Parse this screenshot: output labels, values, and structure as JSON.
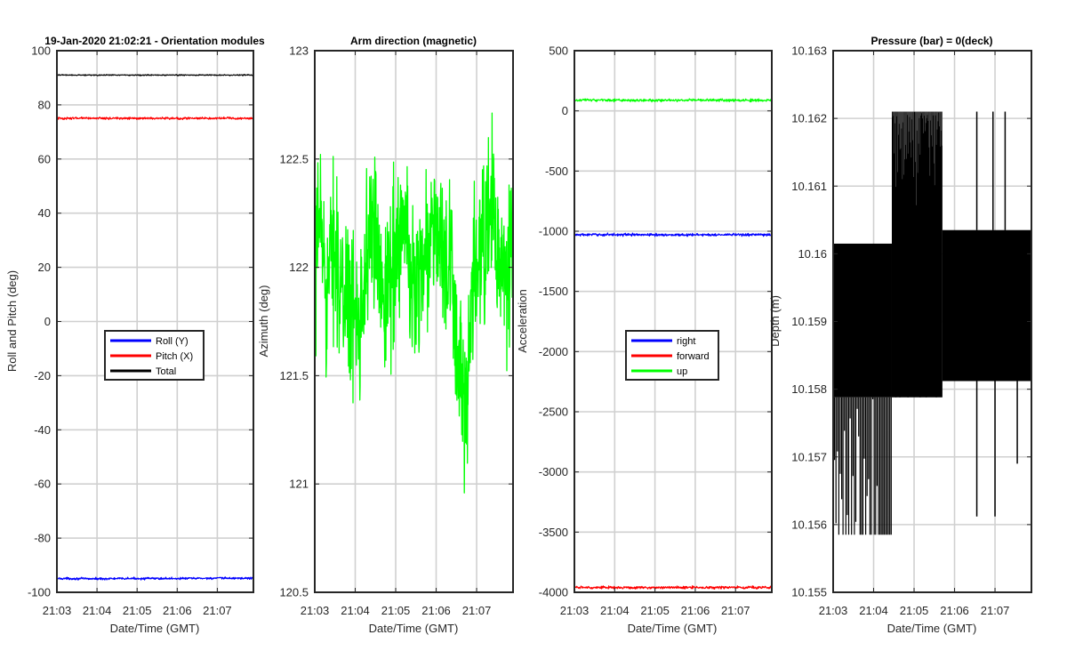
{
  "figure": {
    "background": "#ffffff",
    "grid_color": "#d0d0d0",
    "axis_color": "#262626"
  },
  "chart_data": [
    {
      "type": "line",
      "title": "19-Jan-2020 21:02:21 - Orientation modules",
      "xlabel": "Date/Time (GMT)",
      "ylabel": "Roll and Pitch (deg)",
      "xlim": [
        0,
        4.9
      ],
      "ylim": [
        -100,
        100
      ],
      "xticks": [
        0,
        1,
        2,
        3,
        4
      ],
      "xtick_labels": [
        "21:03",
        "21:04",
        "21:05",
        "21:06",
        "21:07"
      ],
      "yticks": [
        -100,
        -80,
        -60,
        -40,
        -20,
        0,
        20,
        40,
        60,
        80,
        100
      ],
      "ytick_labels": [
        "-100",
        "-80",
        "-60",
        "-40",
        "-20",
        "0",
        "20",
        "40",
        "60",
        "80",
        "100"
      ],
      "grid": true,
      "legend_position": "center",
      "series": [
        {
          "name": "Roll (Y)",
          "color": "#0000ff",
          "x": [
            0,
            1,
            2,
            3,
            4,
            4.9
          ],
          "values": [
            -94.9,
            -95.0,
            -94.9,
            -94.9,
            -94.8,
            -94.8
          ],
          "noise": 0.3
        },
        {
          "name": "Pitch (X)",
          "color": "#ff0000",
          "x": [
            0,
            1,
            2,
            3,
            4,
            4.9
          ],
          "values": [
            75.0,
            75.1,
            75.0,
            75.0,
            75.1,
            75.0
          ],
          "noise": 0.3
        },
        {
          "name": "Total",
          "color": "#000000",
          "x": [
            0,
            1,
            2,
            3,
            4,
            4.9
          ],
          "values": [
            91.0,
            91.0,
            91.0,
            91.0,
            91.0,
            91.0
          ],
          "noise": 0.15
        }
      ]
    },
    {
      "type": "line",
      "title": "Arm direction (magnetic)",
      "xlabel": "Date/Time (GMT)",
      "ylabel": "Azimuth (deg)",
      "xlim": [
        0,
        4.9
      ],
      "ylim": [
        120.5,
        123
      ],
      "xticks": [
        0,
        1,
        2,
        3,
        4
      ],
      "xtick_labels": [
        "21:03",
        "21:04",
        "21:05",
        "21:06",
        "21:07"
      ],
      "yticks": [
        120.5,
        121,
        121.5,
        122,
        122.5,
        123
      ],
      "ytick_labels": [
        "120.5",
        "121",
        "121.5",
        "122",
        "122.5",
        "123"
      ],
      "grid": true,
      "series": [
        {
          "name": "azimuth",
          "color": "#00ff00",
          "x": [
            0,
            0.1,
            0.2,
            0.3,
            0.4,
            0.5,
            0.6,
            0.7,
            0.8,
            0.9,
            1.0,
            1.2,
            1.4,
            1.6,
            1.8,
            2.0,
            2.2,
            2.4,
            2.6,
            2.8,
            3.0,
            3.2,
            3.4,
            3.6,
            3.7,
            3.8,
            3.9,
            4.0,
            4.2,
            4.4,
            4.6,
            4.8,
            4.9
          ],
          "values": [
            121.7,
            122.3,
            122.1,
            121.9,
            122.0,
            122.2,
            121.9,
            121.8,
            122.0,
            121.7,
            121.8,
            121.9,
            122.2,
            122.0,
            121.9,
            122.1,
            122.2,
            121.9,
            122.0,
            122.1,
            122.2,
            122.0,
            121.9,
            121.5,
            121.3,
            121.4,
            121.9,
            122.0,
            122.1,
            122.3,
            121.9,
            122.0,
            122.1
          ],
          "noise": 0.28
        }
      ]
    },
    {
      "type": "line",
      "title": "",
      "xlabel": "Date/Time (GMT)",
      "ylabel": "Acceleration",
      "xlim": [
        0,
        4.9
      ],
      "ylim": [
        -4000,
        500
      ],
      "xticks": [
        0,
        1,
        2,
        3,
        4
      ],
      "xtick_labels": [
        "21:03",
        "21:04",
        "21:05",
        "21:06",
        "21:07"
      ],
      "yticks": [
        -4000,
        -3500,
        -3000,
        -2500,
        -2000,
        -1500,
        -1000,
        -500,
        0,
        500
      ],
      "ytick_labels": [
        "-4000",
        "-3500",
        "-3000",
        "-2500",
        "-2000",
        "-1500",
        "-1000",
        "-500",
        "0",
        "500"
      ],
      "grid": true,
      "legend_position": "center",
      "series": [
        {
          "name": "right",
          "color": "#0000ff",
          "x": [
            0,
            1,
            2,
            3,
            4,
            4.9
          ],
          "values": [
            -1030,
            -1028,
            -1030,
            -1030,
            -1029,
            -1030
          ],
          "noise": 8
        },
        {
          "name": "forward",
          "color": "#ff0000",
          "x": [
            0,
            1,
            2,
            3,
            4,
            4.9
          ],
          "values": [
            -3960,
            -3960,
            -3961,
            -3960,
            -3960,
            -3960
          ],
          "noise": 8
        },
        {
          "name": "up",
          "color": "#00ff00",
          "x": [
            0,
            1,
            2,
            3,
            4,
            4.9
          ],
          "values": [
            90,
            88,
            88,
            90,
            88,
            88
          ],
          "noise": 8
        }
      ]
    },
    {
      "type": "line",
      "title": "Pressure (bar) = 0(deck)",
      "xlabel": "Date/Time (GMT)",
      "ylabel": "Depth (m)",
      "xlim": [
        0,
        4.9
      ],
      "ylim": [
        10.155,
        10.163
      ],
      "xticks": [
        0,
        1,
        2,
        3,
        4
      ],
      "xtick_labels": [
        "21:03",
        "21:04",
        "21:05",
        "21:06",
        "21:07"
      ],
      "yticks": [
        10.155,
        10.156,
        10.157,
        10.158,
        10.159,
        10.16,
        10.161,
        10.162,
        10.163
      ],
      "ytick_labels": [
        "10.155",
        "10.156",
        "10.157",
        "10.158",
        "10.159",
        "10.16",
        "10.161",
        "10.162",
        "10.163"
      ],
      "grid": true,
      "series": [
        {
          "name": "depth",
          "color": "#000000",
          "band_segments": [
            {
              "x": [
                0,
                1.45
              ],
              "low": 10.15788,
              "high": 10.16015,
              "spike_low": 10.15585,
              "spike_high": 10.16015
            },
            {
              "x": [
                1.45,
                2.7
              ],
              "low": 10.15788,
              "high": 10.1621
            },
            {
              "x": [
                2.7,
                4.9
              ],
              "low": 10.15812,
              "high": 10.16035
            }
          ],
          "spikes": [
            {
              "x": 1.55,
              "value": 10.1621
            },
            {
              "x": 1.65,
              "value": 10.1621
            },
            {
              "x": 1.85,
              "value": 10.1621
            },
            {
              "x": 2.15,
              "value": 10.1621
            },
            {
              "x": 2.3,
              "value": 10.1621
            },
            {
              "x": 2.55,
              "value": 10.1621
            },
            {
              "x": 3.55,
              "value": 10.1621
            },
            {
              "x": 3.95,
              "value": 10.1621
            },
            {
              "x": 4.25,
              "value": 10.1621
            },
            {
              "x": 3.55,
              "value": 10.15612
            },
            {
              "x": 4.0,
              "value": 10.15612
            },
            {
              "x": 4.55,
              "value": 10.1569
            }
          ]
        }
      ]
    }
  ]
}
